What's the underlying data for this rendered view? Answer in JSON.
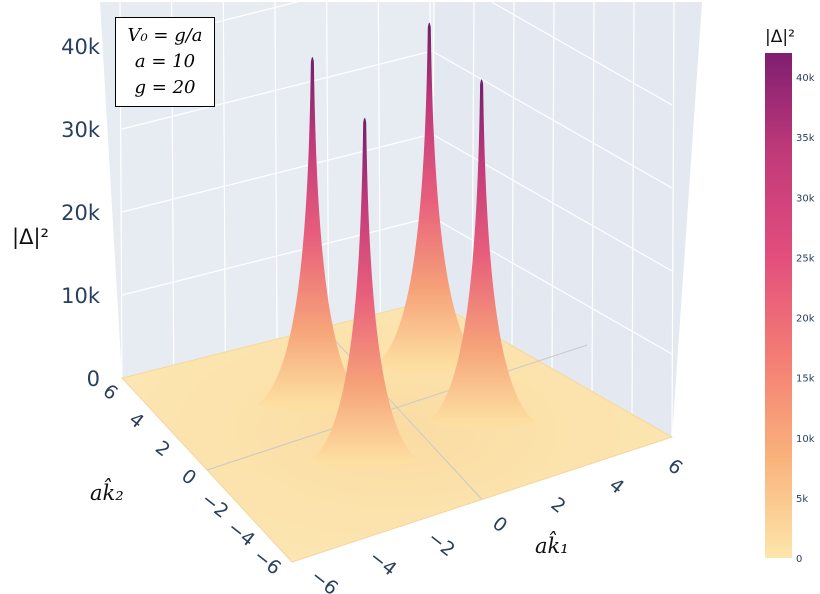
{
  "chart_data": {
    "type": "surface3d",
    "title": "",
    "z_label": "|Δ|²",
    "x_label": "ak̂₁",
    "y_label": "ak̂₂",
    "x_range": [
      -6.5,
      6.5
    ],
    "y_range": [
      -6.5,
      6.5
    ],
    "z_range": [
      0,
      42000
    ],
    "x_ticks": [
      "−6",
      "−4",
      "−2",
      "0",
      "2",
      "4",
      "6"
    ],
    "y_ticks": [
      "−6",
      "−4",
      "−2",
      "0",
      "2",
      "4",
      "6"
    ],
    "z_ticks": [
      "0",
      "10k",
      "20k",
      "30k",
      "40k"
    ],
    "peaks": [
      {
        "k1": -2,
        "k2": 2,
        "value": 41500
      },
      {
        "k1": 2,
        "k2": 2,
        "value": 41000
      },
      {
        "k1": -2,
        "k2": -2,
        "value": 41000
      },
      {
        "k1": 2,
        "k2": -2,
        "value": 41000
      }
    ],
    "colorscale": [
      "#fee8a8",
      "#f9b47d",
      "#f47a74",
      "#e24e7d",
      "#c13a79",
      "#7f1e71"
    ],
    "colorbar": {
      "title": "|Δ|²",
      "range": [
        0,
        42000
      ],
      "ticks": [
        "0",
        "5k",
        "10k",
        "15k",
        "20k",
        "25k",
        "30k",
        "35k",
        "40k"
      ]
    },
    "annotation": [
      "V₀ = g/a",
      "a = 10",
      "g = 20"
    ]
  }
}
